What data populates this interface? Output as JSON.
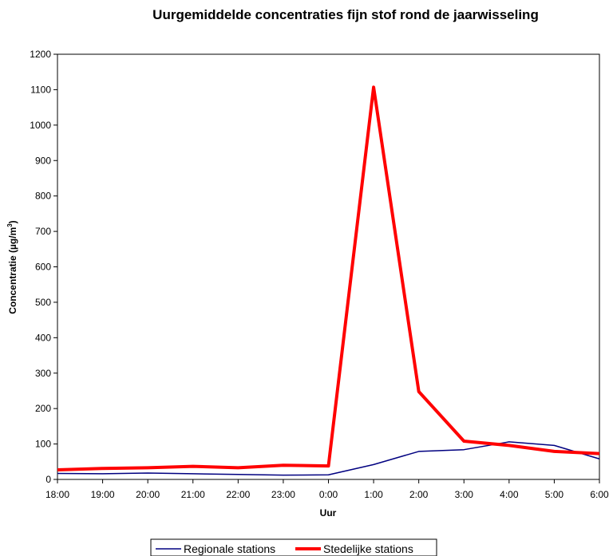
{
  "chart_data": {
    "type": "line",
    "title": "Uurgemiddelde concentraties fijn stof rond de jaarwisseling",
    "xlabel": "Uur",
    "ylabel": "Concentratie (µg/m³)",
    "ylabel_main": "Concentratie (µg/m",
    "ylabel_sup": "3",
    "ylabel_end": ")",
    "ylim": [
      0,
      1200
    ],
    "yticks": [
      "0",
      "100",
      "200",
      "300",
      "400",
      "500",
      "600",
      "700",
      "800",
      "900",
      "1000",
      "1100",
      "1200"
    ],
    "categories": [
      "18:00",
      "19:00",
      "20:00",
      "21:00",
      "22:00",
      "23:00",
      "0:00",
      "1:00",
      "2:00",
      "3:00",
      "4:00",
      "5:00",
      "6:00"
    ],
    "grid": false,
    "legend_position": "bottom",
    "series": [
      {
        "name": "Regionale stations",
        "color": "#000080",
        "values": [
          17,
          16,
          18,
          16,
          14,
          12,
          13,
          42,
          79,
          84,
          106,
          96,
          58
        ]
      },
      {
        "name": "Stedelijke stations",
        "color": "#ff0000",
        "values": [
          27,
          31,
          33,
          37,
          33,
          40,
          38,
          1107,
          248,
          108,
          96,
          79,
          73
        ]
      }
    ]
  }
}
